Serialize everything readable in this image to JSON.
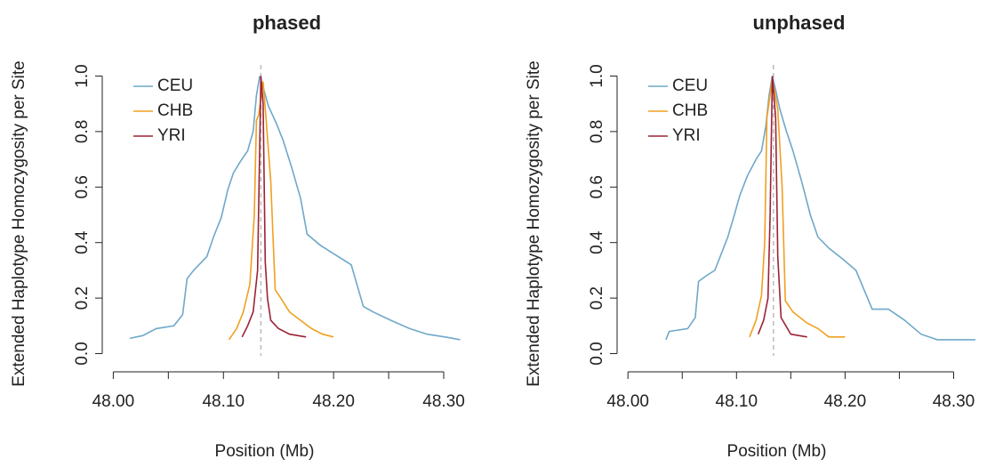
{
  "chart_data": [
    {
      "type": "line",
      "title": "phased",
      "xlabel": "Position (Mb)",
      "ylabel": "Extended Haplotype Homozygosity per Site",
      "xlim": [
        47.99,
        48.325
      ],
      "ylim": [
        -0.04,
        1.04
      ],
      "xticks": [
        {
          "value": 48.0,
          "label": "48.00"
        },
        {
          "value": 48.05,
          "label": null
        },
        {
          "value": 48.1,
          "label": "48.10"
        },
        {
          "value": 48.15,
          "label": null
        },
        {
          "value": 48.2,
          "label": "48.20"
        },
        {
          "value": 48.25,
          "label": null
        },
        {
          "value": 48.3,
          "label": "48.30"
        }
      ],
      "yticks": [
        {
          "value": 0,
          "label": "0.0"
        },
        0.2,
        0.4,
        0.6,
        0.8,
        {
          "value": 1,
          "label": "1.0"
        }
      ],
      "legend": "topleft",
      "marker_x": 48.134,
      "marker_color": "#bbbbbb",
      "series": [
        {
          "name": "CEU",
          "color": "#6fa8c9",
          "x": [
            48.015,
            48.027,
            48.039,
            48.055,
            48.063,
            48.067,
            48.073,
            48.085,
            48.091,
            48.098,
            48.104,
            48.109,
            48.115,
            48.122,
            48.127,
            48.13,
            48.133,
            48.136,
            48.141,
            48.148,
            48.154,
            48.162,
            48.17,
            48.176,
            48.188,
            48.204,
            48.216,
            48.227,
            48.236,
            48.252,
            48.269,
            48.285,
            48.301,
            48.315
          ],
          "values": [
            0.055,
            0.065,
            0.09,
            0.1,
            0.14,
            0.27,
            0.3,
            0.35,
            0.42,
            0.49,
            0.59,
            0.65,
            0.69,
            0.73,
            0.8,
            0.93,
            1.0,
            0.96,
            0.89,
            0.83,
            0.77,
            0.67,
            0.56,
            0.43,
            0.39,
            0.35,
            0.32,
            0.17,
            0.15,
            0.12,
            0.09,
            0.07,
            0.06,
            0.05
          ]
        },
        {
          "name": "CHB",
          "color": "#f0a020",
          "x": [
            48.105,
            48.112,
            48.118,
            48.124,
            48.128,
            48.13,
            48.132,
            48.136,
            48.139,
            48.143,
            48.147,
            48.152,
            48.16,
            48.17,
            48.18,
            48.19,
            48.2
          ],
          "values": [
            0.05,
            0.09,
            0.15,
            0.25,
            0.5,
            0.84,
            0.86,
            0.98,
            0.83,
            0.62,
            0.23,
            0.2,
            0.15,
            0.12,
            0.09,
            0.07,
            0.06
          ]
        },
        {
          "name": "YRI",
          "color": "#9b2335",
          "x": [
            48.117,
            48.122,
            48.127,
            48.131,
            48.133,
            48.134,
            48.136,
            48.138,
            48.14,
            48.143,
            48.15,
            48.16,
            48.175
          ],
          "values": [
            0.06,
            0.1,
            0.15,
            0.3,
            0.75,
            1.0,
            0.9,
            0.33,
            0.2,
            0.12,
            0.09,
            0.07,
            0.06
          ]
        }
      ]
    },
    {
      "type": "line",
      "title": "unphased",
      "xlabel": "Position (Mb)",
      "ylabel": "Extended Haplotype Homozygosity per Site",
      "xlim": [
        47.99,
        48.325
      ],
      "ylim": [
        -0.04,
        1.04
      ],
      "xticks": [
        {
          "value": 48.0,
          "label": "48.00"
        },
        {
          "value": 48.05,
          "label": null
        },
        {
          "value": 48.1,
          "label": "48.10"
        },
        {
          "value": 48.15,
          "label": null
        },
        {
          "value": 48.2,
          "label": "48.20"
        },
        {
          "value": 48.25,
          "label": null
        },
        {
          "value": 48.3,
          "label": "48.30"
        }
      ],
      "yticks": [
        {
          "value": 0,
          "label": "0.0"
        },
        0.2,
        0.4,
        0.6,
        0.8,
        {
          "value": 1,
          "label": "1.0"
        }
      ],
      "legend": "topleft",
      "marker_x": 48.134,
      "marker_color": "#bbbbbb",
      "series": [
        {
          "name": "CEU",
          "color": "#6fa8c9",
          "x": [
            48.035,
            48.038,
            48.055,
            48.062,
            48.065,
            48.072,
            48.08,
            48.085,
            48.092,
            48.098,
            48.103,
            48.11,
            48.118,
            48.123,
            48.127,
            48.13,
            48.133,
            48.136,
            48.14,
            48.146,
            48.152,
            48.16,
            48.168,
            48.175,
            48.185,
            48.198,
            48.21,
            48.225,
            48.24,
            48.255,
            48.27,
            48.285,
            48.32
          ],
          "values": [
            0.05,
            0.08,
            0.09,
            0.13,
            0.26,
            0.28,
            0.3,
            0.35,
            0.42,
            0.5,
            0.57,
            0.64,
            0.7,
            0.73,
            0.82,
            0.93,
            1.0,
            0.95,
            0.88,
            0.8,
            0.73,
            0.62,
            0.5,
            0.42,
            0.38,
            0.34,
            0.3,
            0.16,
            0.16,
            0.12,
            0.07,
            0.05,
            0.05
          ]
        },
        {
          "name": "CHB",
          "color": "#f0a020",
          "x": [
            48.112,
            48.118,
            48.123,
            48.126,
            48.128,
            48.133,
            48.138,
            48.142,
            48.145,
            48.152,
            48.165,
            48.175,
            48.185,
            48.2
          ],
          "values": [
            0.06,
            0.12,
            0.21,
            0.4,
            0.85,
            0.99,
            0.88,
            0.6,
            0.19,
            0.15,
            0.11,
            0.09,
            0.06,
            0.06
          ]
        },
        {
          "name": "YRI",
          "color": "#9b2335",
          "x": [
            48.12,
            48.125,
            48.129,
            48.131,
            48.133,
            48.136,
            48.138,
            48.141,
            48.15,
            48.165
          ],
          "values": [
            0.07,
            0.12,
            0.2,
            0.5,
            1.0,
            0.85,
            0.35,
            0.13,
            0.07,
            0.06
          ]
        }
      ]
    }
  ]
}
